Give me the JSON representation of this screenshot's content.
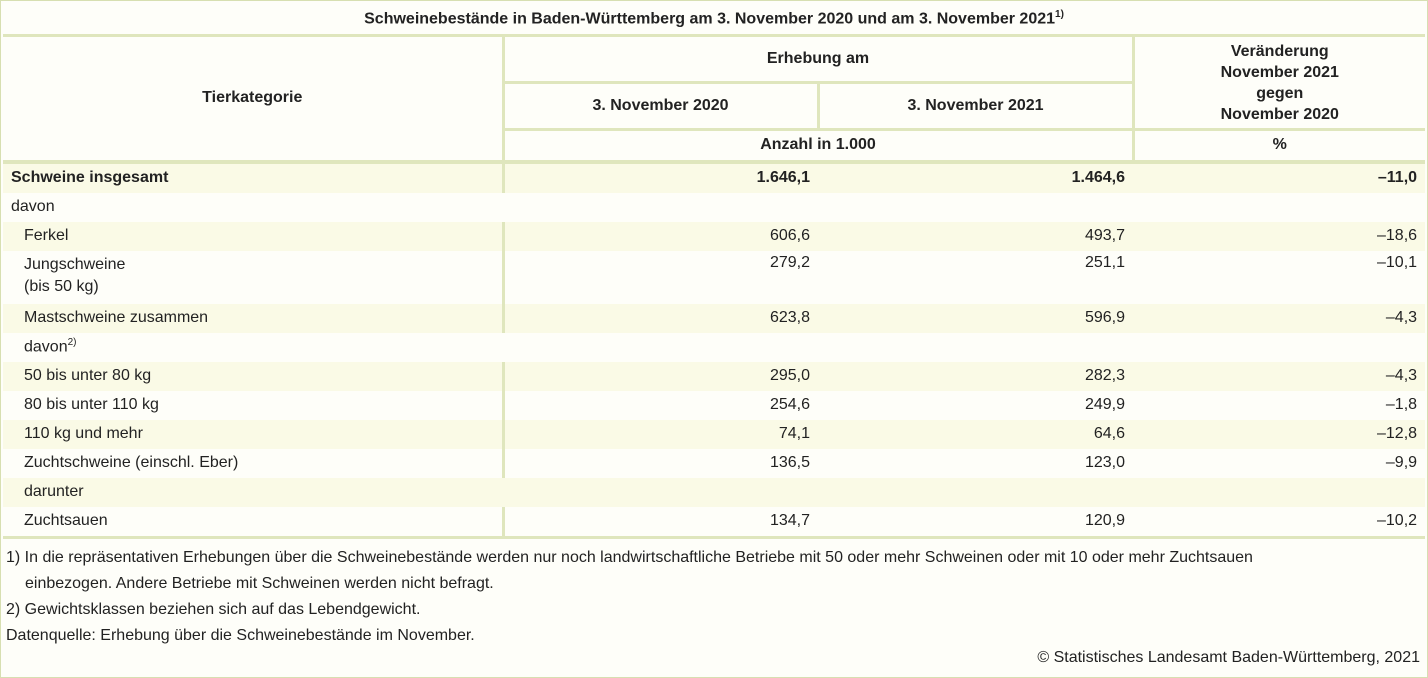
{
  "table": {
    "title": "Schweinebestände in Baden-Württemberg am 3. November 2020 und am 3. November 2021",
    "title_note": "1)",
    "header": {
      "category": "Tierkategorie",
      "survey": "Erhebung am",
      "date1": "3. November 2020",
      "date2": "3. November 2021",
      "change_l1": "Veränderung",
      "change_l2": "November 2021",
      "change_l3": "gegen",
      "change_l4": "November 2020",
      "unit_count": "Anzahl in 1.000",
      "unit_pct": "%"
    },
    "rows": [
      {
        "label": "Schweine insgesamt",
        "v2020": "1.646,1",
        "v2021": "1.464,6",
        "change": "–11,0"
      },
      {
        "label": "davon"
      },
      {
        "label": "Ferkel",
        "v2020": "606,6",
        "v2021": "493,7",
        "change": "–18,6"
      },
      {
        "label": "Jungschweine",
        "label2": "(bis 50 kg)",
        "v2020": "279,2",
        "v2021": "251,1",
        "change": "–10,1"
      },
      {
        "label": "Mastschweine zusammen",
        "v2020": "623,8",
        "v2021": "596,9",
        "change": "–4,3"
      },
      {
        "label": "davon",
        "note": "2)"
      },
      {
        "label": "50 bis unter 80 kg",
        "v2020": "295,0",
        "v2021": "282,3",
        "change": "–4,3"
      },
      {
        "label": "80 bis unter 110 kg",
        "v2020": "254,6",
        "v2021": "249,9",
        "change": "–1,8"
      },
      {
        "label": "110 kg und mehr",
        "v2020": "74,1",
        "v2021": "64,6",
        "change": "–12,8"
      },
      {
        "label": "Zuchtschweine (einschl. Eber)",
        "v2020": "136,5",
        "v2021": "123,0",
        "change": "–9,9"
      },
      {
        "label": "darunter"
      },
      {
        "label": "Zuchtsauen",
        "v2020": "134,7",
        "v2021": "120,9",
        "change": "–10,2"
      }
    ]
  },
  "footnotes": {
    "fn1_l1": "1) In die repräsentativen Erhebungen über die Schweinebestände werden nur noch landwirtschaftliche Betriebe mit 50 oder mehr Schweinen oder mit 10 oder mehr Zuchtsauen",
    "fn1_l2": "einbezogen. Andere Betriebe mit Schweinen werden nicht befragt.",
    "fn2": "2) Gewichtsklassen beziehen sich auf das Lebendgewicht.",
    "source": "Datenquelle: Erhebung über die Schweinebestände im November."
  },
  "copyright": "© Statistisches Landesamt Baden-Württemberg, 2021"
}
